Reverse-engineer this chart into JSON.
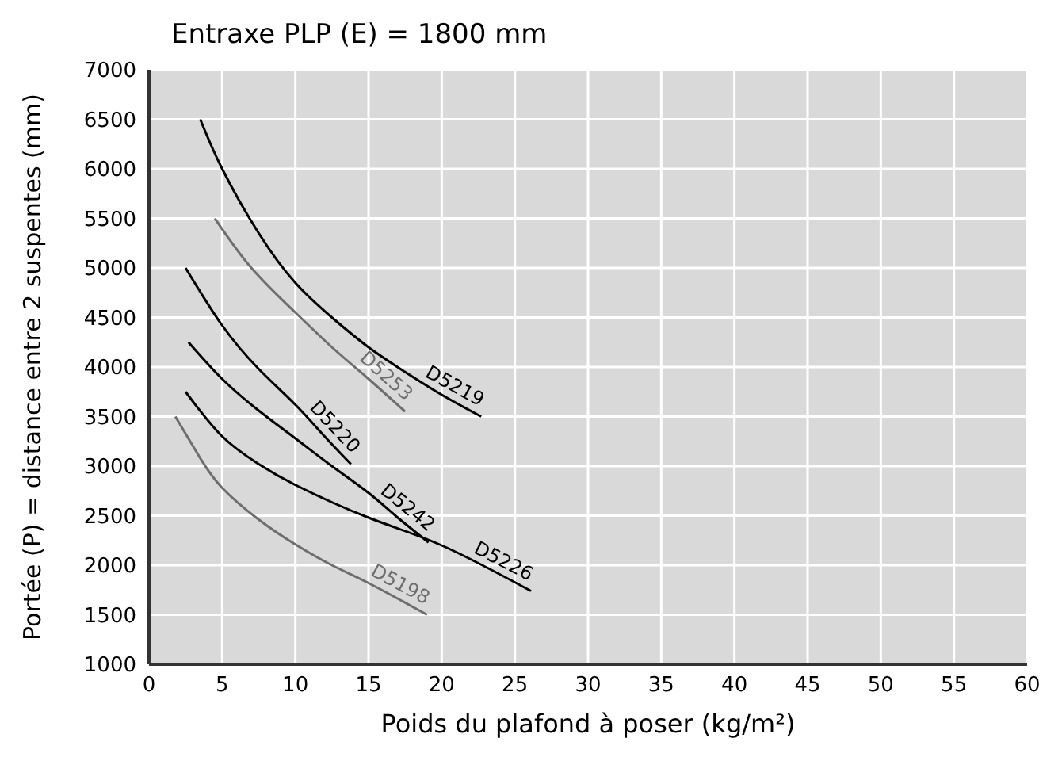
{
  "chart_data": {
    "type": "line",
    "title": "Entraxe PLP (E) = 1800 mm",
    "xlabel": "Poids du plafond à poser (kg/m²)",
    "ylabel": "Portée (P) = distance entre 2 suspentes (mm)",
    "xlim": [
      0,
      60
    ],
    "xticks": [
      0,
      5,
      10,
      15,
      20,
      25,
      30,
      35,
      40,
      45,
      50,
      55,
      60
    ],
    "ylim": [
      1000,
      7000
    ],
    "yticks": [
      1000,
      1500,
      2000,
      2500,
      3000,
      3500,
      4000,
      4500,
      5000,
      5500,
      6000,
      6500,
      7000
    ],
    "grid": true,
    "marker": "none",
    "line_style": "solid",
    "series": [
      {
        "name": "D5219",
        "color": "#000000",
        "x": [
          3.5,
          5,
          7.5,
          10,
          12.5,
          15,
          17.5,
          20,
          22.7
        ],
        "values": [
          6500,
          6000,
          5350,
          4850,
          4500,
          4200,
          3950,
          3720,
          3500
        ]
      },
      {
        "name": "D5253",
        "color": "#6e6e6e",
        "x": [
          4.5,
          7,
          10,
          12.5,
          15,
          17.5
        ],
        "values": [
          5500,
          5000,
          4550,
          4200,
          3880,
          3550
        ]
      },
      {
        "name": "D5220",
        "color": "#000000",
        "x": [
          2.5,
          5,
          7.5,
          10,
          12,
          13.8
        ],
        "values": [
          5000,
          4420,
          3980,
          3620,
          3300,
          3020
        ]
      },
      {
        "name": "D5242",
        "color": "#000000",
        "x": [
          2.7,
          5,
          7.5,
          10,
          12.5,
          15,
          17,
          19.1
        ],
        "values": [
          4250,
          3880,
          3560,
          3280,
          3000,
          2730,
          2480,
          2230
        ]
      },
      {
        "name": "D5226",
        "color": "#000000",
        "x": [
          2.5,
          5,
          7.5,
          10,
          15,
          20,
          26.1
        ],
        "values": [
          3750,
          3300,
          3020,
          2810,
          2480,
          2200,
          1740
        ]
      },
      {
        "name": "D5198",
        "color": "#6e6e6e",
        "x": [
          1.8,
          3.5,
          5,
          7.5,
          10,
          12.5,
          15,
          19
        ],
        "values": [
          3500,
          3080,
          2780,
          2460,
          2210,
          2000,
          1820,
          1500
        ]
      }
    ]
  }
}
